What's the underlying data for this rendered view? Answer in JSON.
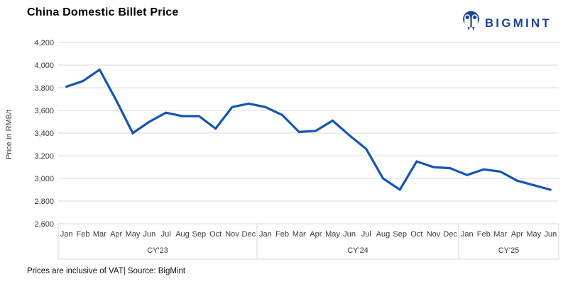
{
  "title": "China Domestic Billet Price",
  "logo": {
    "text": "BIGMINT",
    "icon": "bigmint-mascot",
    "color": "#1d4695"
  },
  "footer_note": "Prices are inclusive of VAT| Source: BigMint",
  "chart_data": {
    "type": "line",
    "title": "China Domestic Billet Price",
    "xlabel": "",
    "ylabel": "Price in RMB/t",
    "ylim": [
      2600,
      4200
    ],
    "ytick_step": 200,
    "yticklabels": [
      "4,200",
      "4,000",
      "3,800",
      "3,600",
      "3,400",
      "3,200",
      "3,000",
      "2,800",
      "2,600"
    ],
    "grid": true,
    "legend": "none",
    "colors": {
      "line": "#1355b4",
      "grid": "#d9d9d9",
      "axis_text": "#3a3a3a"
    },
    "groups": [
      {
        "label": "CY'23",
        "months": [
          "Jan",
          "Feb",
          "Mar",
          "Apr",
          "May",
          "Jun",
          "Jul",
          "Aug",
          "Sep",
          "Oct",
          "Nov",
          "Dec"
        ]
      },
      {
        "label": "CY'24",
        "months": [
          "Jan",
          "Feb",
          "Mar",
          "Apr",
          "May",
          "Jun",
          "Jul",
          "Aug",
          "Sep",
          "Oct",
          "Nov",
          "Dec"
        ]
      },
      {
        "label": "CY'25",
        "months": [
          "Jan",
          "Feb",
          "Mar",
          "Apr",
          "May",
          "Jun"
        ]
      }
    ],
    "series": [
      {
        "name": "China domestic billet price (RMB/t)",
        "values": [
          3810,
          3860,
          3960,
          3690,
          3400,
          3500,
          3580,
          3550,
          3550,
          3440,
          3630,
          3660,
          3630,
          3560,
          3410,
          3420,
          3510,
          3380,
          3260,
          3000,
          2900,
          3150,
          3100,
          3090,
          3030,
          3080,
          3060,
          2980,
          2940,
          2900
        ]
      }
    ]
  }
}
